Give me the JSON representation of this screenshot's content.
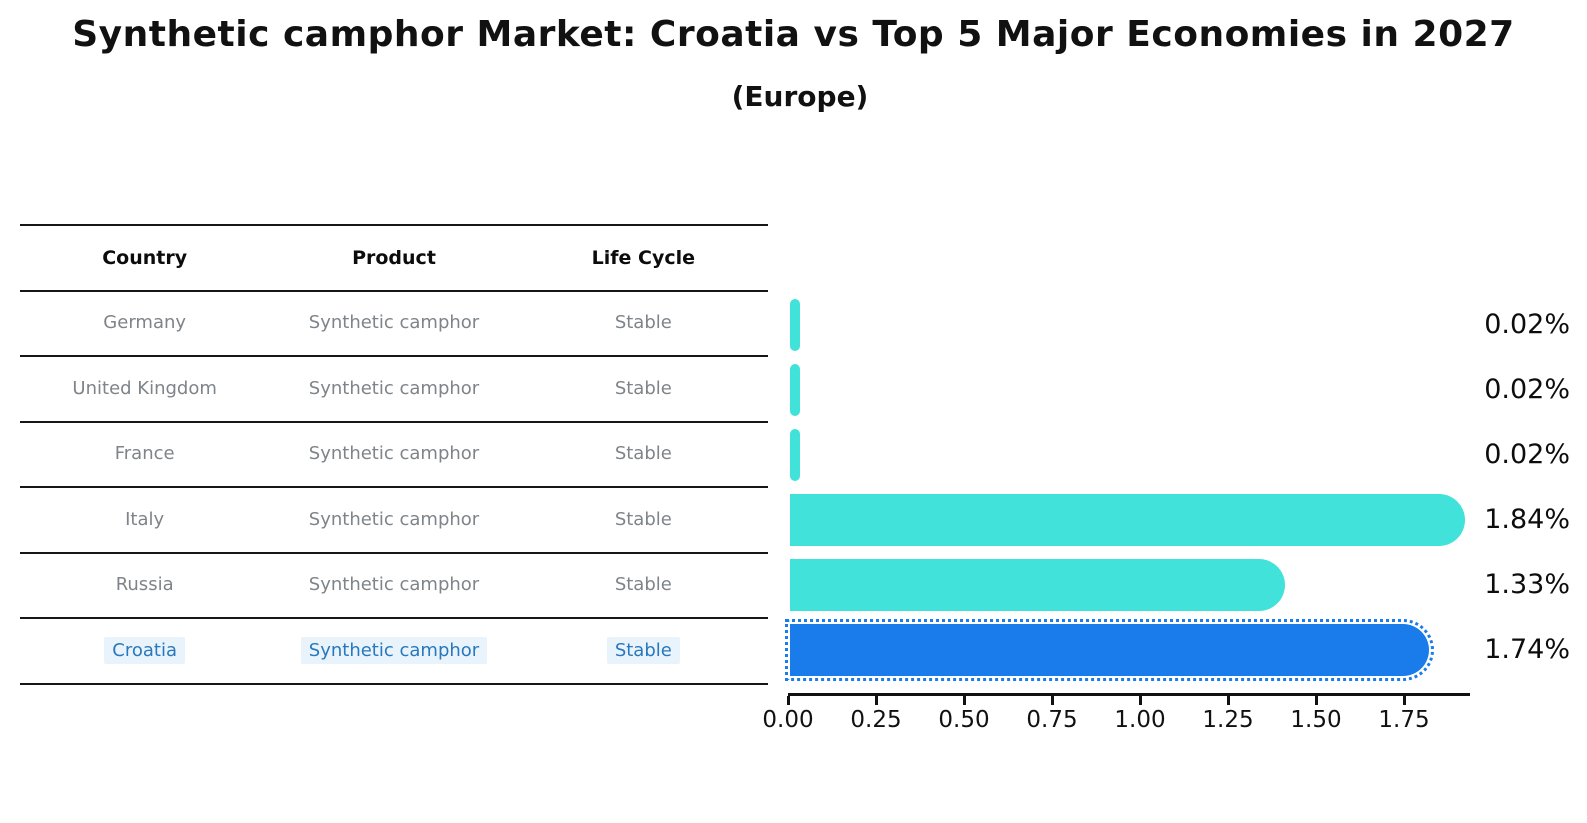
{
  "title": "Synthetic camphor Market: Croatia vs Top 5 Major Economies in 2027",
  "subtitle": "(Europe)",
  "table": {
    "headers": [
      "Country",
      "Product",
      "Life Cycle"
    ],
    "rows": [
      {
        "country": "Germany",
        "product": "Synthetic camphor",
        "life_cycle": "Stable",
        "highlight": false
      },
      {
        "country": "United Kingdom",
        "product": "Synthetic camphor",
        "life_cycle": "Stable",
        "highlight": false
      },
      {
        "country": "France",
        "product": "Synthetic camphor",
        "life_cycle": "Stable",
        "highlight": false
      },
      {
        "country": "Italy",
        "product": "Synthetic camphor",
        "life_cycle": "Stable",
        "highlight": false
      },
      {
        "country": "Russia",
        "product": "Synthetic camphor",
        "life_cycle": "Stable",
        "highlight": false
      },
      {
        "country": "Croatia",
        "product": "Synthetic camphor",
        "life_cycle": "Stable",
        "highlight": true
      }
    ]
  },
  "chart_data": {
    "type": "bar",
    "orientation": "horizontal",
    "title": "Synthetic camphor Market: Croatia vs Top 5 Major Economies in 2027 (Europe)",
    "categories": [
      "Germany",
      "United Kingdom",
      "France",
      "Italy",
      "Russia",
      "Croatia"
    ],
    "values": [
      0.02,
      0.02,
      0.02,
      1.84,
      1.33,
      1.74
    ],
    "value_labels": [
      "0.02%",
      "0.02%",
      "0.02%",
      "1.84%",
      "1.33%",
      "1.74%"
    ],
    "x_ticks": [
      "0.00",
      "0.25",
      "0.50",
      "0.75",
      "1.00",
      "1.25",
      "1.50",
      "1.75"
    ],
    "xlim": [
      0,
      1.93
    ],
    "grid": false,
    "legend": "none",
    "bar_color": "#41e2d9",
    "highlight_bar_color": "#1a7bea",
    "highlight_index": 5,
    "highlight_style": "dotted-outline"
  },
  "colors": {
    "title_text": "#111111",
    "table_text": "#7e8489",
    "table_header_text": "#0c0c0c",
    "highlight_text": "#2878bd",
    "highlight_row_bg": "#e9f3fb",
    "line": "#161616"
  }
}
